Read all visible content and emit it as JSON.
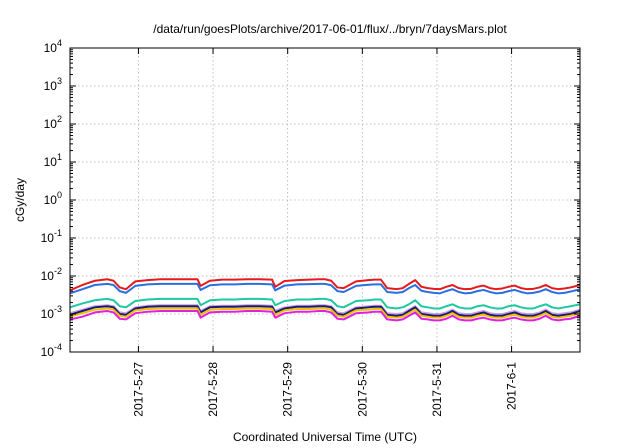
{
  "chart_data": {
    "type": "line",
    "title": "/data/run/goesPlots/archive/2017-06-01/flux/../bryn/7daysMars.plot",
    "xlabel": "Coordinated Universal Time (UTC)",
    "ylabel": "cGy/day",
    "yscale": "log",
    "ylim": [
      0.0001,
      10000
    ],
    "xlim": [
      "2017-05-26 02:00",
      "2017-06-01 22:00"
    ],
    "grid": true,
    "x_ticks": [
      {
        "value": "2017-05-27",
        "label": "2017-5-27"
      },
      {
        "value": "2017-05-28",
        "label": "2017-5-28"
      },
      {
        "value": "2017-05-29",
        "label": "2017-5-29"
      },
      {
        "value": "2017-05-30",
        "label": "2017-5-30"
      },
      {
        "value": "2017-05-31",
        "label": "2017-5-31"
      },
      {
        "value": "2017-06-01",
        "label": "2017-6-1"
      }
    ],
    "y_ticks": [
      {
        "value": 0.0001,
        "base": "10",
        "exp": "-4"
      },
      {
        "value": 0.001,
        "base": "10",
        "exp": "-3"
      },
      {
        "value": 0.01,
        "base": "10",
        "exp": "-2"
      },
      {
        "value": 0.1,
        "base": "10",
        "exp": "-1"
      },
      {
        "value": 1,
        "base": "10",
        "exp": "0"
      },
      {
        "value": 10,
        "base": "10",
        "exp": "1"
      },
      {
        "value": 100,
        "base": "10",
        "exp": "2"
      },
      {
        "value": 1000,
        "base": "10",
        "exp": "3"
      },
      {
        "value": 10000,
        "base": "10",
        "exp": "4"
      }
    ],
    "x": [
      "2017-05-26 02:00",
      "2017-05-26 06:00",
      "2017-05-26 10:00",
      "2017-05-26 14:00",
      "2017-05-26 16:00",
      "2017-05-26 18:00",
      "2017-05-26 20:00",
      "2017-05-26 23:00",
      "2017-05-27 03:00",
      "2017-05-27 07:00",
      "2017-05-27 11:00",
      "2017-05-27 15:00",
      "2017-05-27 19:00",
      "2017-05-27 20:00",
      "2017-05-27 23:00",
      "2017-05-28 03:00",
      "2017-05-28 07:00",
      "2017-05-28 11:00",
      "2017-05-28 15:00",
      "2017-05-28 19:00",
      "2017-05-28 20:00",
      "2017-05-28 23:00",
      "2017-05-29 03:00",
      "2017-05-29 07:00",
      "2017-05-29 10:00",
      "2017-05-29 12:00",
      "2017-05-29 14:00",
      "2017-05-29 16:00",
      "2017-05-29 18:00",
      "2017-05-29 22:00",
      "2017-05-30 02:00",
      "2017-05-30 04:00",
      "2017-05-30 06:00",
      "2017-05-30 08:00",
      "2017-05-30 11:00",
      "2017-05-30 13:00",
      "2017-05-30 15:00",
      "2017-05-30 17:00",
      "2017-05-30 19:00",
      "2017-05-30 21:00",
      "2017-05-30 23:00",
      "2017-05-31 01:00",
      "2017-05-31 03:00",
      "2017-05-31 05:00",
      "2017-05-31 07:00",
      "2017-05-31 09:00",
      "2017-05-31 11:00",
      "2017-05-31 13:00",
      "2017-05-31 15:00",
      "2017-05-31 17:00",
      "2017-05-31 19:00",
      "2017-05-31 21:00",
      "2017-05-31 23:00",
      "2017-06-01 01:00",
      "2017-06-01 03:00",
      "2017-06-01 05:00",
      "2017-06-01 07:00",
      "2017-06-01 09:00",
      "2017-06-01 11:00",
      "2017-06-01 13:00",
      "2017-06-01 15:00",
      "2017-06-01 17:00",
      "2017-06-01 19:00",
      "2017-06-01 22:00"
    ],
    "series": [
      {
        "color": "#e41a1c",
        "values": [
          0.0042,
          0.0058,
          0.0075,
          0.0082,
          0.0075,
          0.005,
          0.0045,
          0.0072,
          0.0078,
          0.0082,
          0.0082,
          0.0082,
          0.0082,
          0.0055,
          0.0075,
          0.008,
          0.008,
          0.0082,
          0.0082,
          0.008,
          0.0052,
          0.0074,
          0.0078,
          0.008,
          0.0082,
          0.0082,
          0.0075,
          0.005,
          0.0048,
          0.0072,
          0.0078,
          0.008,
          0.008,
          0.0048,
          0.0045,
          0.0048,
          0.0062,
          0.0078,
          0.0052,
          0.0048,
          0.0046,
          0.0045,
          0.0052,
          0.0058,
          0.0048,
          0.0045,
          0.0046,
          0.0052,
          0.0056,
          0.0048,
          0.0045,
          0.0047,
          0.0052,
          0.0056,
          0.0048,
          0.0045,
          0.0046,
          0.005,
          0.0058,
          0.0048,
          0.0045,
          0.0047,
          0.005,
          0.0058
        ]
      },
      {
        "color": "#2a6fe0",
        "values": [
          0.0035,
          0.0045,
          0.0058,
          0.0062,
          0.0058,
          0.004,
          0.0036,
          0.0055,
          0.006,
          0.0062,
          0.0062,
          0.0062,
          0.0062,
          0.0043,
          0.0057,
          0.006,
          0.006,
          0.0062,
          0.0062,
          0.006,
          0.0042,
          0.0056,
          0.006,
          0.0061,
          0.0062,
          0.0062,
          0.0057,
          0.004,
          0.0038,
          0.0055,
          0.0059,
          0.006,
          0.006,
          0.0038,
          0.0036,
          0.0038,
          0.0048,
          0.0058,
          0.0041,
          0.0038,
          0.0036,
          0.0035,
          0.004,
          0.0045,
          0.0038,
          0.0035,
          0.0036,
          0.004,
          0.0043,
          0.0038,
          0.0035,
          0.0036,
          0.004,
          0.0043,
          0.0038,
          0.0035,
          0.0036,
          0.0039,
          0.0045,
          0.0038,
          0.0035,
          0.0036,
          0.0039,
          0.0045
        ]
      },
      {
        "color": "#1ec8a0",
        "values": [
          0.0015,
          0.0019,
          0.0023,
          0.0025,
          0.0023,
          0.0016,
          0.0015,
          0.0022,
          0.0024,
          0.0025,
          0.0025,
          0.0025,
          0.0025,
          0.0017,
          0.0023,
          0.0024,
          0.0024,
          0.0025,
          0.0025,
          0.0024,
          0.0017,
          0.0022,
          0.0024,
          0.0024,
          0.0025,
          0.0025,
          0.0023,
          0.0016,
          0.0015,
          0.0022,
          0.0023,
          0.0024,
          0.0024,
          0.0015,
          0.0014,
          0.0015,
          0.0018,
          0.0023,
          0.0016,
          0.0015,
          0.0014,
          0.0014,
          0.0016,
          0.0018,
          0.0015,
          0.0014,
          0.0014,
          0.0016,
          0.0017,
          0.0015,
          0.0014,
          0.0014,
          0.0016,
          0.0017,
          0.0015,
          0.0014,
          0.0014,
          0.0016,
          0.0018,
          0.0015,
          0.0014,
          0.0015,
          0.0016,
          0.0018
        ]
      },
      {
        "color": "#c9a0e0",
        "values": [
          0.00105,
          0.0013,
          0.0016,
          0.0017,
          0.0016,
          0.0011,
          0.00105,
          0.0015,
          0.00165,
          0.0017,
          0.0017,
          0.0017,
          0.0017,
          0.0012,
          0.0016,
          0.00165,
          0.00165,
          0.0017,
          0.0017,
          0.00165,
          0.0012,
          0.0015,
          0.00165,
          0.00165,
          0.0017,
          0.0017,
          0.0016,
          0.0011,
          0.00105,
          0.0015,
          0.0016,
          0.00165,
          0.00165,
          0.00105,
          0.001,
          0.00105,
          0.0013,
          0.0016,
          0.0011,
          0.00105,
          0.001,
          0.001,
          0.0011,
          0.0013,
          0.00105,
          0.001,
          0.001,
          0.0011,
          0.0012,
          0.00105,
          0.001,
          0.001,
          0.0011,
          0.0012,
          0.00105,
          0.001,
          0.001,
          0.0011,
          0.0013,
          0.00105,
          0.001,
          0.00105,
          0.0011,
          0.0013
        ]
      },
      {
        "color": "#1a1a6e",
        "values": [
          0.00095,
          0.0012,
          0.0015,
          0.0016,
          0.0015,
          0.001,
          0.00095,
          0.0014,
          0.00155,
          0.0016,
          0.0016,
          0.0016,
          0.0016,
          0.0011,
          0.0015,
          0.00155,
          0.00155,
          0.0016,
          0.0016,
          0.00155,
          0.0011,
          0.0014,
          0.00155,
          0.00155,
          0.0016,
          0.0016,
          0.0015,
          0.001,
          0.00095,
          0.0014,
          0.0015,
          0.00155,
          0.00155,
          0.00095,
          0.0009,
          0.00095,
          0.0012,
          0.0015,
          0.001,
          0.00095,
          0.0009,
          0.0009,
          0.001,
          0.0012,
          0.00095,
          0.0009,
          0.0009,
          0.001,
          0.0011,
          0.00095,
          0.0009,
          0.0009,
          0.001,
          0.0011,
          0.00095,
          0.0009,
          0.0009,
          0.001,
          0.0012,
          0.00095,
          0.0009,
          0.00095,
          0.001,
          0.0012
        ]
      },
      {
        "color": "#f0c000",
        "values": [
          0.00085,
          0.00105,
          0.0013,
          0.0014,
          0.0013,
          0.0009,
          0.00085,
          0.00125,
          0.00135,
          0.0014,
          0.0014,
          0.0014,
          0.0014,
          0.00095,
          0.0013,
          0.00135,
          0.00135,
          0.0014,
          0.0014,
          0.00135,
          0.00095,
          0.00125,
          0.00135,
          0.00135,
          0.0014,
          0.0014,
          0.0013,
          0.0009,
          0.00085,
          0.00125,
          0.0013,
          0.00135,
          0.00135,
          0.00085,
          0.0008,
          0.00085,
          0.00105,
          0.0013,
          0.0009,
          0.00085,
          0.0008,
          0.0008,
          0.0009,
          0.00105,
          0.00085,
          0.0008,
          0.0008,
          0.0009,
          0.00095,
          0.00085,
          0.0008,
          0.0008,
          0.0009,
          0.00095,
          0.00085,
          0.0008,
          0.0008,
          0.0009,
          0.00105,
          0.00085,
          0.0008,
          0.00085,
          0.0009,
          0.00105
        ]
      },
      {
        "color": "#e020e0",
        "values": [
          0.00072,
          0.00085,
          0.0011,
          0.0012,
          0.0011,
          0.00075,
          0.00072,
          0.00105,
          0.00115,
          0.0012,
          0.0012,
          0.0012,
          0.0012,
          0.0008,
          0.0011,
          0.00115,
          0.00115,
          0.0012,
          0.0012,
          0.00115,
          0.0008,
          0.00105,
          0.00115,
          0.00115,
          0.0012,
          0.0012,
          0.0011,
          0.00075,
          0.00072,
          0.00105,
          0.0011,
          0.00115,
          0.00115,
          0.00072,
          0.00068,
          0.00072,
          0.0009,
          0.0011,
          0.00075,
          0.00072,
          0.00068,
          0.00068,
          0.00075,
          0.0009,
          0.00072,
          0.00068,
          0.00068,
          0.00075,
          0.0008,
          0.00072,
          0.00068,
          0.00068,
          0.00075,
          0.0008,
          0.00072,
          0.00068,
          0.00068,
          0.00075,
          0.0009,
          0.00072,
          0.00068,
          0.00072,
          0.00075,
          0.0009
        ]
      }
    ]
  }
}
